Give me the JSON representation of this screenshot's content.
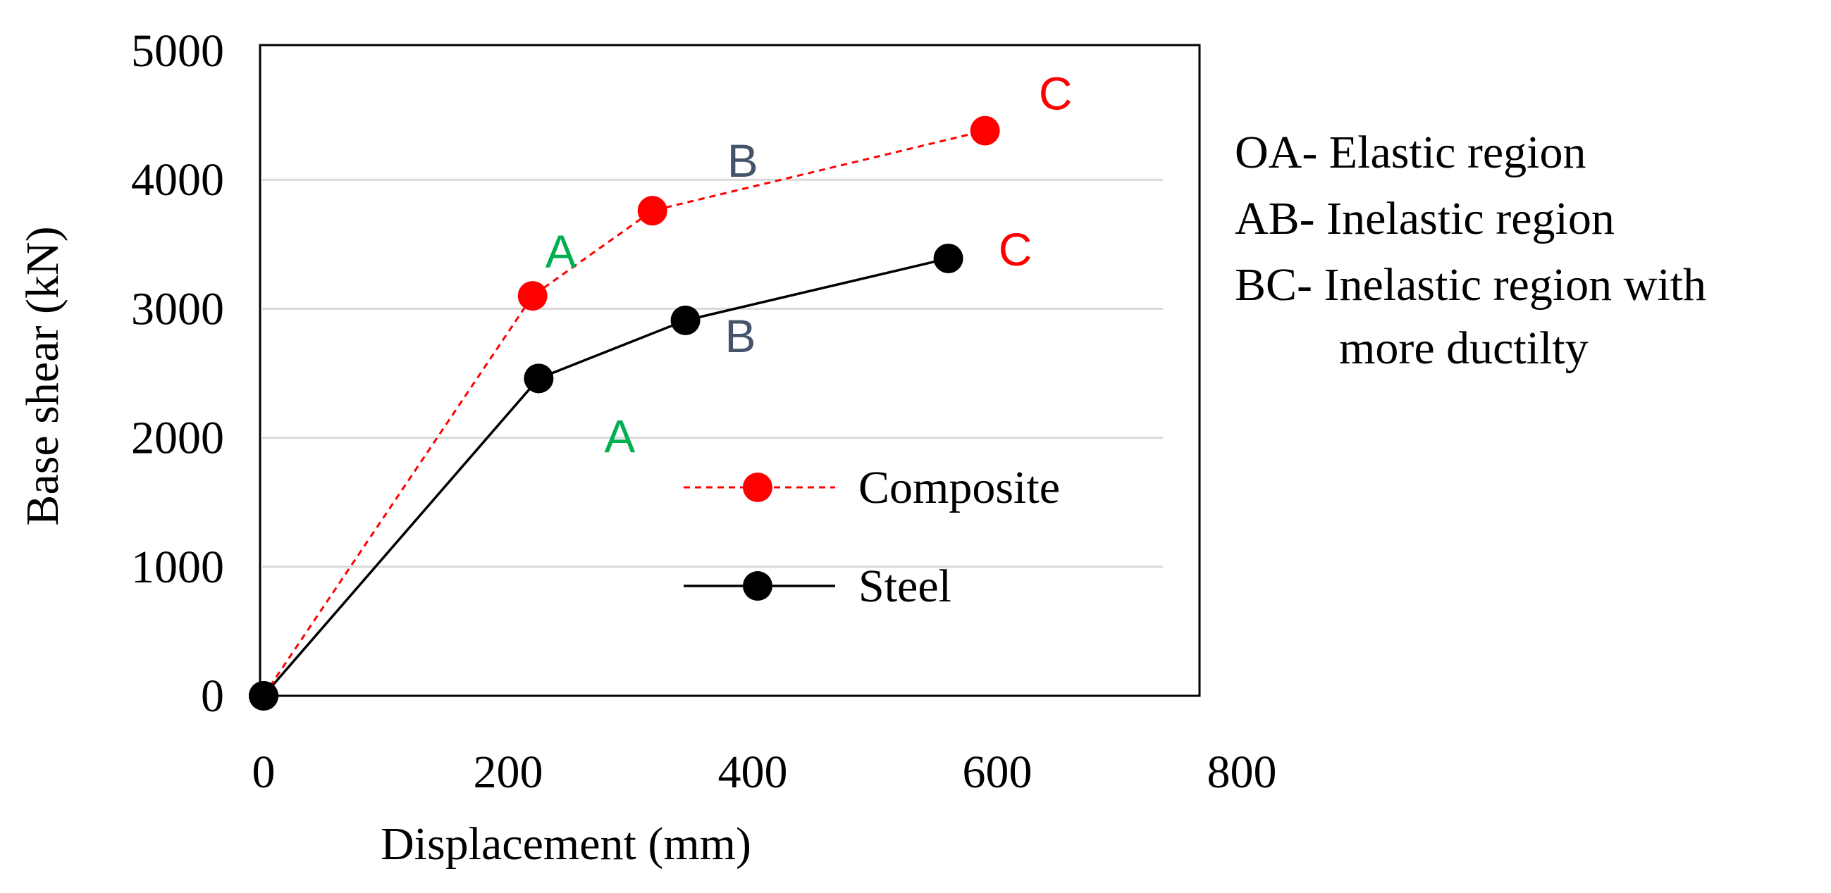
{
  "chart_data": {
    "type": "line",
    "xlabel": "Displacement (mm)",
    "ylabel": "Base shear (kN)",
    "xlim": [
      0,
      800
    ],
    "ylim": [
      0,
      5000
    ],
    "xticks": [
      "0",
      "200",
      "400",
      "600",
      "800"
    ],
    "yticks": [
      "0",
      "1000",
      "2000",
      "3000",
      "4000",
      "5000"
    ],
    "grid": true,
    "legend_position": "bottom-right",
    "series": [
      {
        "name": "Composite",
        "color": "#ff0000",
        "line_style": "dashed",
        "x": [
          0,
          220,
          318,
          590
        ],
        "y": [
          0,
          3100,
          3760,
          4380
        ],
        "labels": [
          "",
          "A",
          "B",
          "C"
        ],
        "label_colors": [
          "",
          "#00b050",
          "#44546a",
          "#ff0000"
        ]
      },
      {
        "name": "Steel",
        "color": "#000000",
        "line_style": "solid",
        "x": [
          0,
          225,
          345,
          560
        ],
        "y": [
          0,
          2460,
          2910,
          3390
        ],
        "labels": [
          "",
          "A",
          "B",
          "C"
        ],
        "label_colors": [
          "",
          "#00b050",
          "#44546a",
          "#ff0000"
        ]
      }
    ]
  },
  "notes": {
    "line1": "OA- Elastic region",
    "line2": "AB- Inelastic region",
    "line3": "BC- Inelastic region with",
    "line4": "more ductilty"
  }
}
